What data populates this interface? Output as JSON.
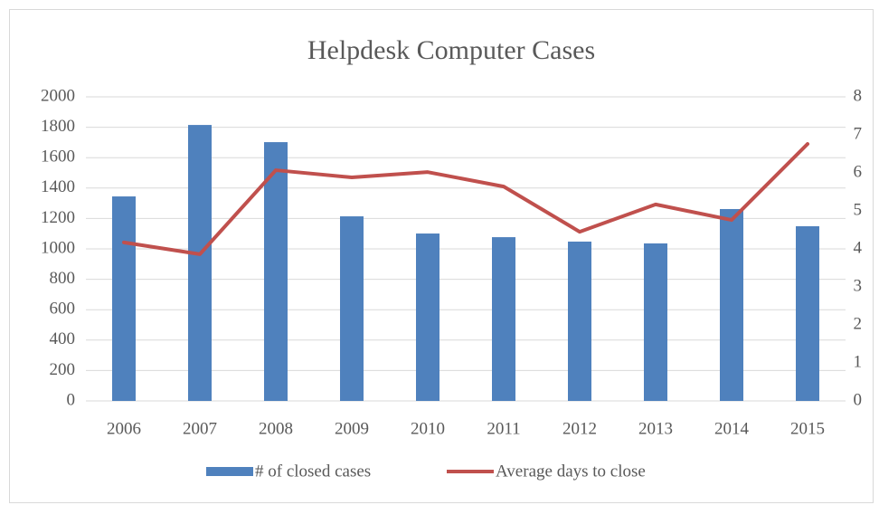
{
  "chart_data": {
    "type": "bar_line",
    "title": "Helpdesk Computer Cases",
    "categories": [
      "2006",
      "2007",
      "2008",
      "2009",
      "2010",
      "2011",
      "2012",
      "2013",
      "2014",
      "2015"
    ],
    "series": [
      {
        "name": "# of closed cases",
        "type": "bar",
        "color": "#4f81bd",
        "values": [
          1345,
          1815,
          1702,
          1214,
          1101,
          1077,
          1048,
          1036,
          1262,
          1149
        ]
      },
      {
        "name": "Average days to close",
        "type": "line",
        "axis": "y2",
        "color": "#c0504d",
        "values": [
          4.17,
          3.86,
          6.07,
          5.88,
          6.02,
          5.64,
          4.45,
          5.17,
          4.76,
          6.76
        ]
      }
    ],
    "ylim": [
      0,
      2000
    ],
    "yticks": [
      0,
      200,
      400,
      600,
      800,
      1000,
      1200,
      1400,
      1600,
      1800,
      2000
    ],
    "y2lim": [
      0,
      8
    ],
    "y2ticks": [
      0,
      1,
      2,
      3,
      4,
      5,
      6,
      7,
      8
    ],
    "grid": true,
    "legend": "bottom"
  }
}
